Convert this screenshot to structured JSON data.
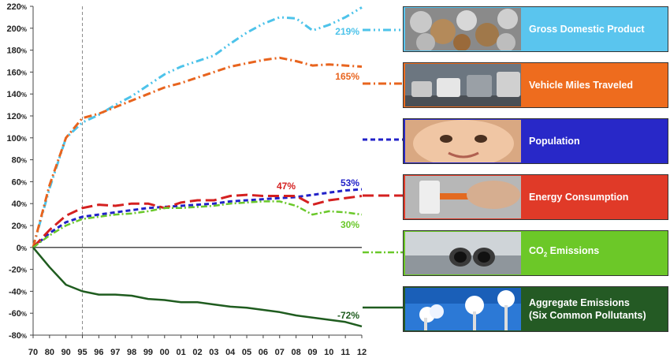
{
  "chart_data": {
    "type": "line",
    "x_ticks": [
      "70",
      "80",
      "90",
      "95",
      "96",
      "97",
      "98",
      "99",
      "00",
      "01",
      "02",
      "03",
      "04",
      "05",
      "06",
      "07",
      "08",
      "09",
      "10",
      "11",
      "12"
    ],
    "y_ticks": [
      "220%",
      "200%",
      "180%",
      "160%",
      "140%",
      "120%",
      "100%",
      "80%",
      "60%",
      "40%",
      "20%",
      "0%",
      "-20%",
      "-40%",
      "-60%",
      "-80%"
    ],
    "ylim": [
      -80,
      220
    ],
    "reference_line_x": "95",
    "series": [
      {
        "name": "Gross Domestic Product",
        "color": "#4dc3ea",
        "values": [
          0,
          54,
          100,
          114,
          121,
          130,
          138,
          148,
          158,
          165,
          170,
          175,
          186,
          196,
          204,
          210,
          209,
          198,
          203,
          210,
          219
        ],
        "end_label": "219%"
      },
      {
        "name": "Vehicle Miles Traveled",
        "color": "#e8641e",
        "values": [
          0,
          57,
          100,
          118,
          122,
          128,
          134,
          140,
          146,
          150,
          155,
          160,
          165,
          168,
          171,
          173,
          170,
          166,
          167,
          166,
          165
        ],
        "end_label": "165%"
      },
      {
        "name": "Population",
        "color": "#2222c8",
        "values": [
          0,
          13,
          23,
          28,
          30,
          32,
          34,
          36,
          37,
          38,
          39,
          40,
          42,
          43,
          44,
          45,
          46,
          48,
          50,
          52,
          53
        ],
        "end_label": "53%"
      },
      {
        "name": "Energy Consumption",
        "color": "#d42020",
        "values": [
          0,
          16,
          29,
          36,
          39,
          38,
          40,
          40,
          36,
          41,
          43,
          43,
          47,
          48,
          47,
          47,
          47,
          39,
          43,
          45,
          47
        ],
        "end_label": "47%"
      },
      {
        "name": "CO2 Emissions",
        "color": "#6ac82a",
        "values": [
          0,
          11,
          20,
          26,
          28,
          30,
          31,
          33,
          36,
          36,
          37,
          38,
          40,
          41,
          42,
          42,
          38,
          30,
          33,
          32,
          30
        ],
        "end_label": "30%"
      },
      {
        "name": "Aggregate Emissions (Six Common Pollutants)",
        "color": "#1f5c1f",
        "values": [
          0,
          -18,
          -34,
          -40,
          -43,
          -43,
          -44,
          -47,
          -48,
          -50,
          -50,
          -52,
          -54,
          -55,
          -57,
          -59,
          -62,
          -64,
          -66,
          -68,
          -72
        ],
        "end_label": "-72%"
      }
    ]
  },
  "legend": [
    {
      "label_line1": "Gross Domestic Product",
      "label_line2": "",
      "bg": "#5ac5ee",
      "photo": "coins"
    },
    {
      "label_line1": "Vehicle Miles Traveled",
      "label_line2": "",
      "bg": "#ee6c1e",
      "photo": "traffic"
    },
    {
      "label_line1": "Population",
      "label_line2": "",
      "bg": "#2828c8",
      "photo": "baby"
    },
    {
      "label_line1": "Energy Consumption",
      "label_line2": "",
      "bg": "#e03a28",
      "photo": "plug"
    },
    {
      "label_line1": "CO",
      "label_sub": "2",
      "label_after": " Emissions",
      "label_line2": "",
      "bg": "#6cc828",
      "photo": "exhaust"
    },
    {
      "label_line1": "Aggregate Emissions",
      "label_line2": "(Six Common Pollutants)",
      "bg": "#245a24",
      "photo": "smokestacks"
    }
  ]
}
